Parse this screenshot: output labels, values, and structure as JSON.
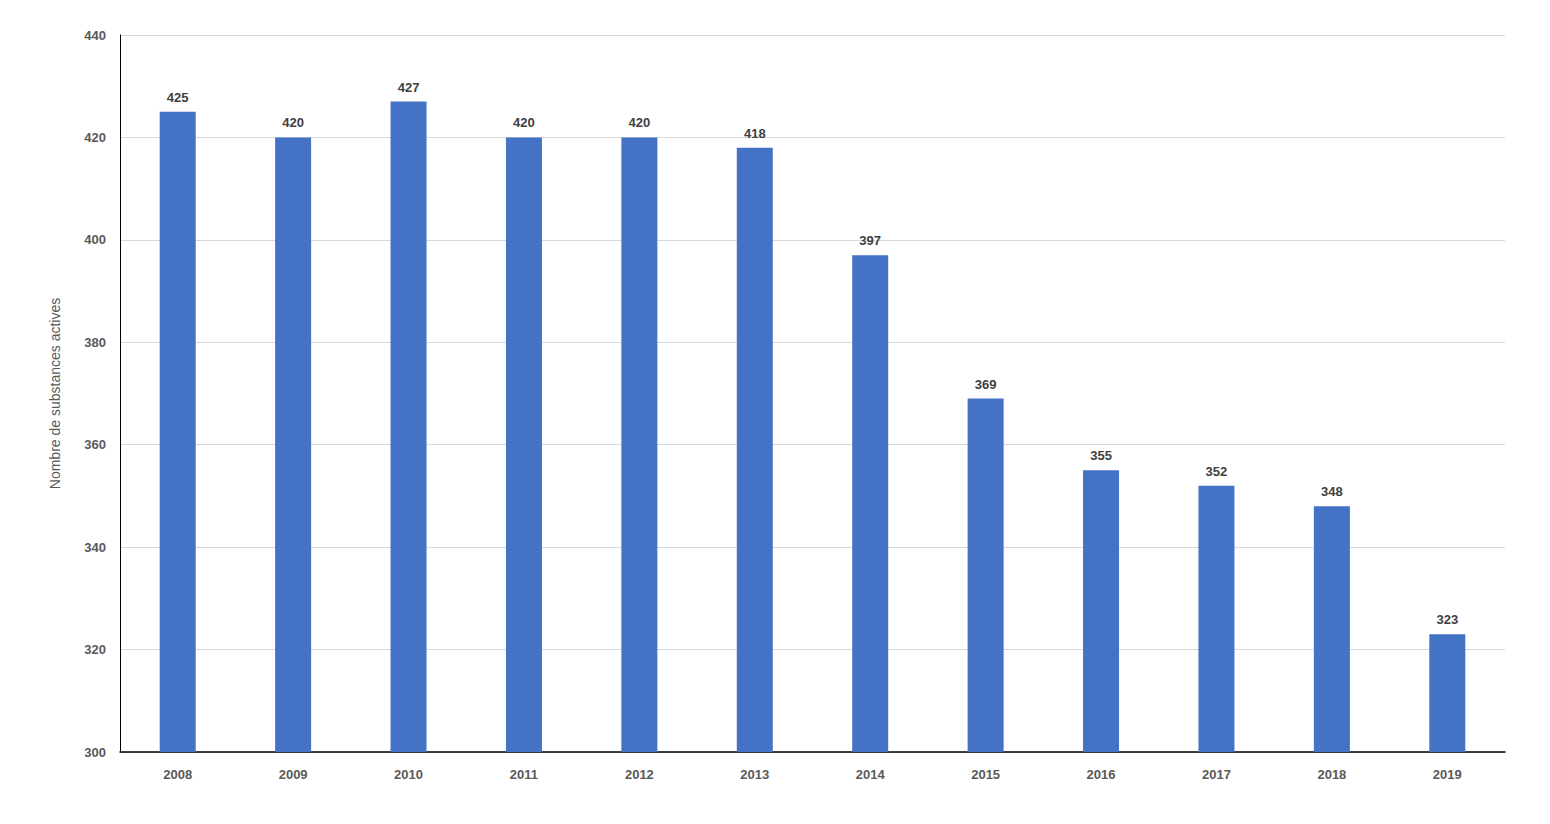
{
  "chart_data": {
    "type": "bar",
    "y_label": "Nombre de substances actives",
    "categories": [
      "2008",
      "2009",
      "2010",
      "2011",
      "2012",
      "2013",
      "2014",
      "2015",
      "2016",
      "2017",
      "2018",
      "2019"
    ],
    "values": [
      425,
      420,
      427,
      420,
      420,
      418,
      397,
      369,
      355,
      352,
      348,
      323
    ],
    "color": "#4472c4",
    "ylim": [
      300,
      440
    ],
    "yticks": [
      300,
      320,
      340,
      360,
      380,
      400,
      420,
      440
    ],
    "grid": true,
    "data_labels": true
  }
}
